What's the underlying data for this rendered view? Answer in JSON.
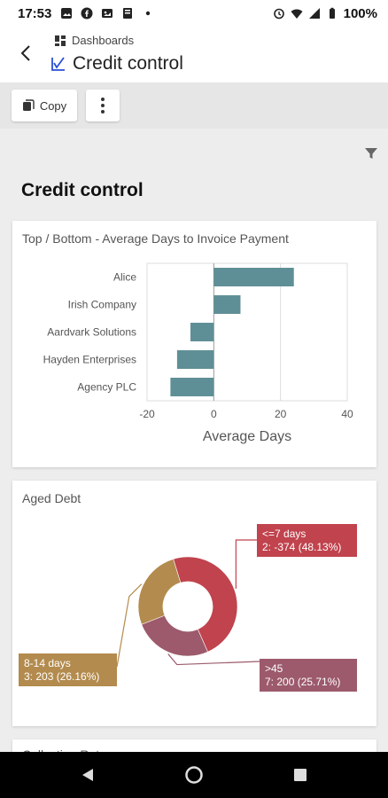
{
  "status_bar": {
    "time": "17:53",
    "battery": "100%"
  },
  "app_bar": {
    "breadcrumb": "Dashboards",
    "title": "Credit control"
  },
  "toolbar": {
    "copy_label": "Copy"
  },
  "page": {
    "title": "Credit control"
  },
  "colors": {
    "bar": "#5f8f96",
    "red": "#c0434d",
    "gold": "#b38b4e",
    "mauve": "#9c5a6c"
  },
  "chart_data": [
    {
      "type": "bar",
      "orientation": "horizontal",
      "title": "Top / Bottom - Average Days to Invoice Payment",
      "categories": [
        "Alice",
        "Irish Company",
        "Aardvark Solutions",
        "Hayden Enterprises",
        "Agency PLC"
      ],
      "values": [
        24,
        8,
        -7,
        -11,
        -13
      ],
      "xlabel": "Average Days",
      "xlim": [
        -20,
        40
      ],
      "xticks": [
        "-20",
        "0",
        "20",
        "40"
      ],
      "grid": true
    },
    {
      "type": "pie",
      "subtype": "donut",
      "title": "Aged Debt",
      "slices": [
        {
          "name": "<=7 days",
          "label": "2: -374 (48.13%)",
          "value": 48.13,
          "color": "#c0434d"
        },
        {
          "name": ">45",
          "label": "7: 200 (25.71%)",
          "value": 25.71,
          "color": "#9c5a6c"
        },
        {
          "name": "8-14 days",
          "label": "3: 203 (26.16%)",
          "value": 26.16,
          "color": "#b38b4e"
        }
      ]
    }
  ],
  "card3": {
    "title": "Collection Rate"
  }
}
